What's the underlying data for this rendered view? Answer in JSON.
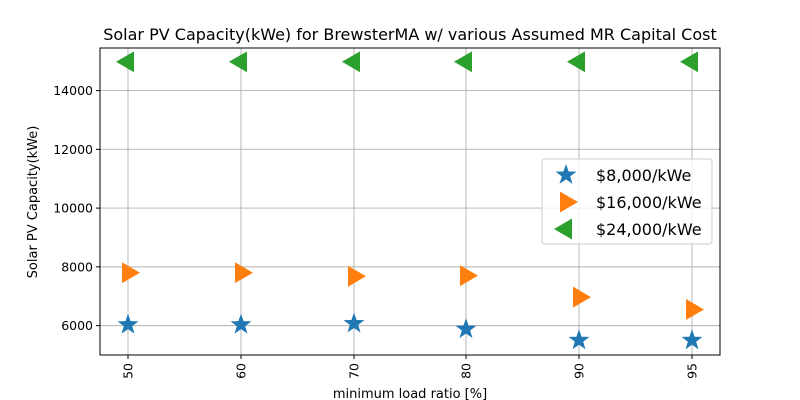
{
  "chart_data": {
    "type": "scatter",
    "title": "Solar PV Capacity(kWe) for BrewsterMA w/ various Assumed MR Capital Cost",
    "xlabel": "minimum load ratio [%]",
    "ylabel": "Solar PV Capacity(kWe)",
    "categories": [
      "50",
      "60",
      "70",
      "80",
      "90",
      "95"
    ],
    "ylim": [
      5000,
      15450
    ],
    "yticks": [
      6000,
      8000,
      10000,
      12000,
      14000
    ],
    "grid": true,
    "legend_position": "center-right",
    "series": [
      {
        "name": "$8,000/kWe",
        "marker": "star",
        "color": "#1f77b4",
        "values": [
          6030,
          6030,
          6070,
          5880,
          5500,
          5500
        ]
      },
      {
        "name": "$16,000/kWe",
        "marker": "triangle-right",
        "color": "#ff7f0e",
        "values": [
          7800,
          7800,
          7680,
          7700,
          6970,
          6550
        ]
      },
      {
        "name": "$24,000/kWe",
        "marker": "triangle-left",
        "color": "#2ca02c",
        "values": [
          14980,
          14980,
          14980,
          14980,
          14980,
          14980
        ]
      }
    ]
  }
}
